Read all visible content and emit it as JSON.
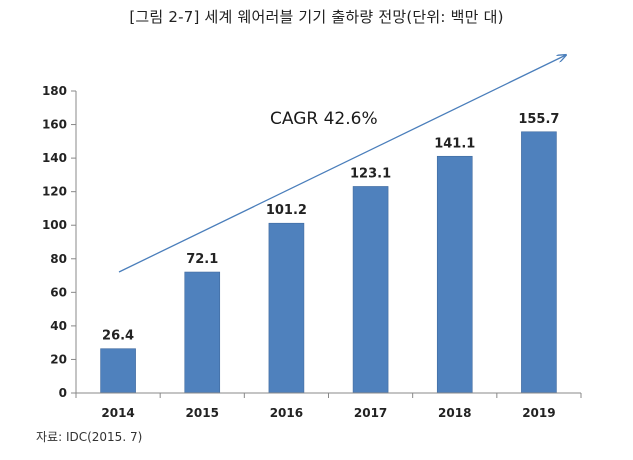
{
  "header": {
    "title": "[그림 2-7] 세계 웨어러블 기기 출하량 전망(단위: 백만 대)"
  },
  "footer": {
    "source": "자료: IDC(2015. 7)"
  },
  "chart_data": {
    "type": "bar",
    "title": "[그림 2-7] 세계 웨어러블 기기 출하량 전망(단위: 백만 대)",
    "categories": [
      "2014",
      "2015",
      "2016",
      "2017",
      "2018",
      "2019"
    ],
    "values": [
      26.4,
      72.1,
      101.2,
      123.1,
      141.1,
      155.7
    ],
    "value_labels": [
      "26.4",
      "72.1",
      "101.2",
      "123.1",
      "141.1",
      "155.7"
    ],
    "y_ticks": [
      "0",
      "20",
      "40",
      "60",
      "80",
      "100",
      "120",
      "140",
      "160",
      "180"
    ],
    "ylim": [
      0,
      180
    ],
    "xlabel": "",
    "ylabel": "",
    "grid": false,
    "legend": "none",
    "annotation": "CAGR 42.6%",
    "colors": {
      "bar": "#4f81bd",
      "bar_edge": "#3f6a9e",
      "arrow": "#4a7ebb",
      "axis": "#888888"
    }
  }
}
